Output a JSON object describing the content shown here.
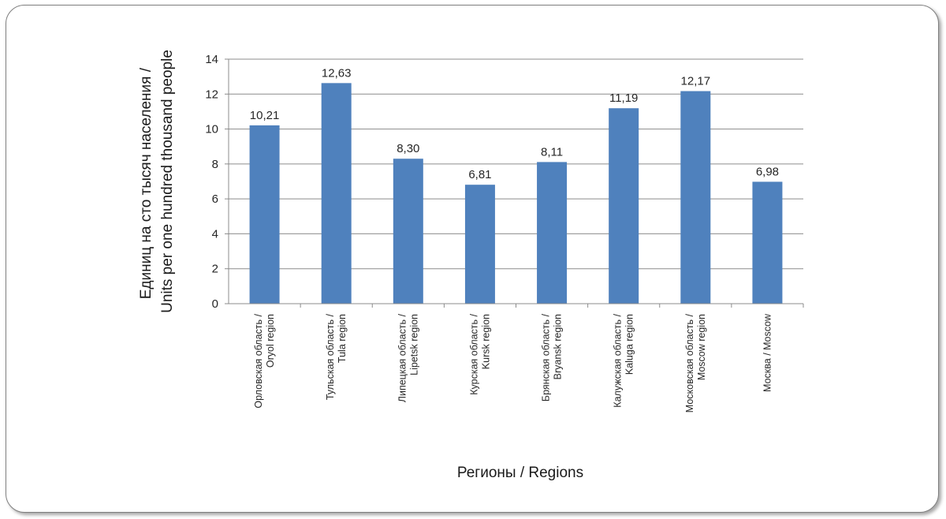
{
  "chart_data": {
    "type": "bar",
    "categories": [
      [
        "Орловская область /",
        "Oryol region"
      ],
      [
        "Тульская область /",
        "Tula region"
      ],
      [
        "Липецкая область /",
        "Lipetsk region"
      ],
      [
        "Курская область /",
        "Kursk region"
      ],
      [
        "Брянская область /",
        "Bryansk region"
      ],
      [
        "Калужская область /",
        "Kaluga region"
      ],
      [
        "Московская область /",
        "Moscow region"
      ],
      [
        "Москва / Moscow"
      ]
    ],
    "values": [
      10.21,
      12.63,
      8.3,
      6.81,
      8.11,
      11.19,
      12.17,
      6.98
    ],
    "data_labels": [
      "10,21",
      "12,63",
      "8,30",
      "6,81",
      "8,11",
      "11,19",
      "12,17",
      "6,98"
    ],
    "yticks": [
      "0",
      "2",
      "4",
      "6",
      "8",
      "10",
      "12",
      "14"
    ],
    "ylim": [
      0,
      14
    ],
    "xlabel": "Регионы / Regions",
    "ylabel": [
      "Единиц на сто тысяч населения /",
      "Units per one hundred thousand people"
    ],
    "title": "",
    "grid": "horizontal",
    "legend": "none",
    "bar_color": "#4f81bd"
  }
}
